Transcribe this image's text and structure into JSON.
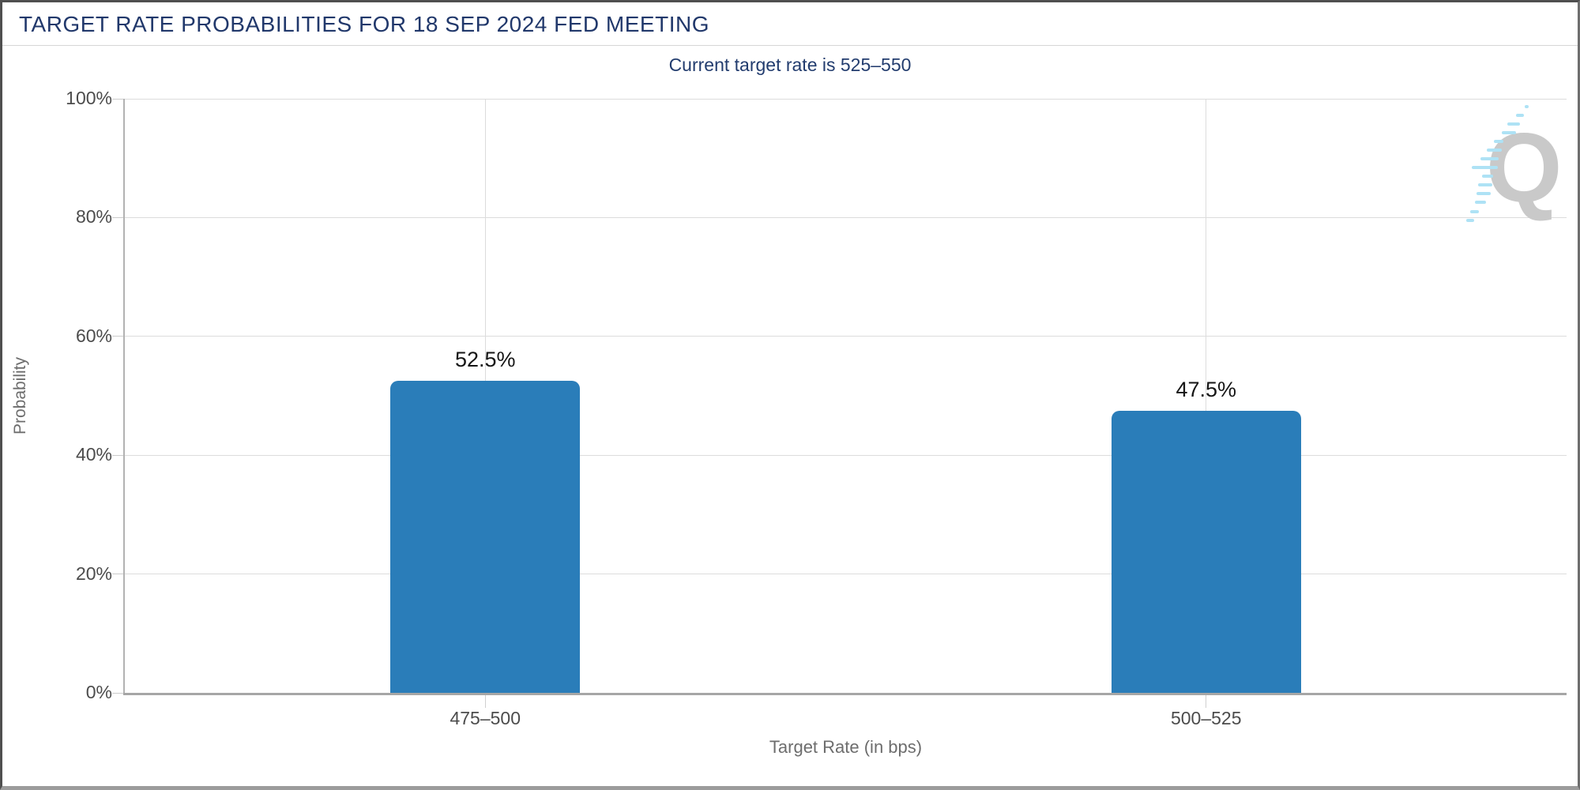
{
  "window": {
    "title": "TARGET RATE PROBABILITIES FOR 18 SEP 2024 FED MEETING"
  },
  "chart_data": {
    "type": "bar",
    "title": "TARGET RATE PROBABILITIES FOR 18 SEP 2024 FED MEETING",
    "subtitle": "Current target rate is 525–550",
    "categories": [
      "475–500",
      "500–525"
    ],
    "values": [
      52.5,
      47.5
    ],
    "value_labels": [
      "52.5%",
      "47.5%"
    ],
    "xlabel": "Target Rate (in bps)",
    "ylabel": "Probability",
    "ylim": [
      0,
      100
    ],
    "ytick_values": [
      0,
      20,
      40,
      60,
      80,
      100
    ],
    "ytick_labels": [
      "0%",
      "20%",
      "40%",
      "60%",
      "80%",
      "100%"
    ],
    "grid": true,
    "legend": "none",
    "bar_color": "#2A7DB9"
  },
  "colors": {
    "title_navy": "#21386B",
    "subtitle_navy": "#223C6E",
    "bar_blue": "#2A7DB9",
    "axis_gray": "#A6A6A6",
    "gridline_gray": "#DCDCDC",
    "tick_text_gray": "#4C4C4C",
    "axis_title_gray": "#6D6D6D",
    "watermark_gray": "#C9C9C9",
    "watermark_cyan": "#AEE2F5"
  },
  "watermark": {
    "letter": "Q"
  }
}
